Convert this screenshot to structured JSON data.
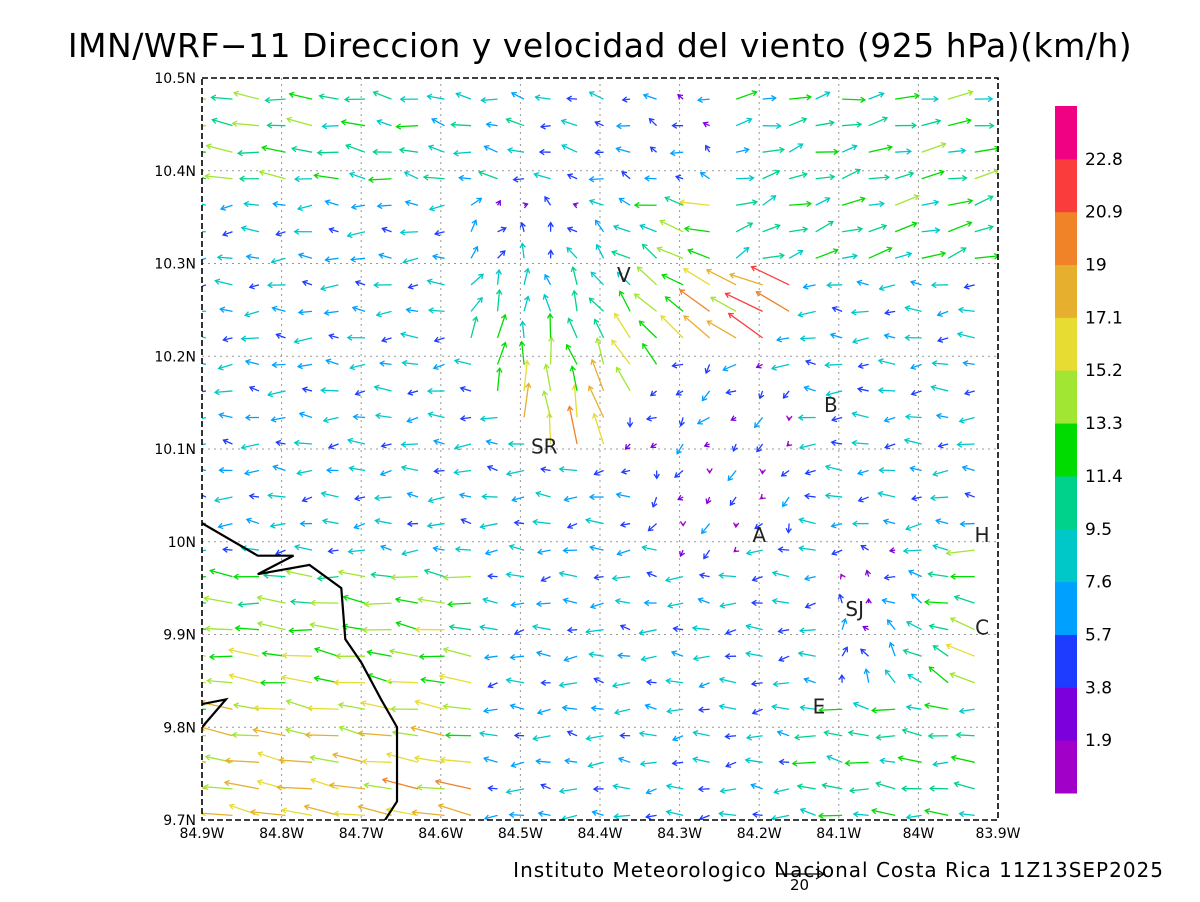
{
  "title": "IMN/WRF−11 Direccion y velocidad del viento (925 hPa)(km/h)",
  "footer": "Instituto Meteorologico Nacional Costa Rica 11Z13SEP2025",
  "reference_vector_label": "20",
  "map": {
    "lon_range": [
      -84.9,
      -83.9
    ],
    "lat_range": [
      9.7,
      10.5
    ],
    "x_ticks": [
      "84.9W",
      "84.8W",
      "84.7W",
      "84.6W",
      "84.5W",
      "84.4W",
      "84.3W",
      "84.2W",
      "84.1W",
      "84W",
      "83.9W"
    ],
    "y_ticks": [
      "9.7N",
      "9.8N",
      "9.9N",
      "10N",
      "10.1N",
      "10.2N",
      "10.3N",
      "10.4N",
      "10.5N"
    ],
    "grid": "dotted",
    "city_labels": [
      {
        "text": "V",
        "lon": -84.37,
        "lat": 10.28
      },
      {
        "text": "B",
        "lon": -84.11,
        "lat": 10.14
      },
      {
        "text": "SR",
        "lon": -84.47,
        "lat": 10.095
      },
      {
        "text": "A",
        "lon": -84.2,
        "lat": 10.0
      },
      {
        "text": "H",
        "lon": -83.92,
        "lat": 10.0
      },
      {
        "text": "SJ",
        "lon": -84.08,
        "lat": 9.92
      },
      {
        "text": "C",
        "lon": -83.92,
        "lat": 9.9
      },
      {
        "text": "E",
        "lon": -84.125,
        "lat": 9.815
      }
    ],
    "coastline": [
      [
        -84.9,
        10.02
      ],
      [
        -84.83,
        9.985
      ],
      [
        -84.785,
        9.985
      ],
      [
        -84.83,
        9.965
      ],
      [
        -84.765,
        9.975
      ],
      [
        -84.725,
        9.95
      ],
      [
        -84.72,
        9.895
      ],
      [
        -84.7,
        9.87
      ],
      [
        -84.675,
        9.83
      ],
      [
        -84.655,
        9.8
      ],
      [
        -84.655,
        9.72
      ],
      [
        -84.67,
        9.7
      ]
    ],
    "coast_islet": [
      [
        -84.9,
        9.8
      ],
      [
        -84.87,
        9.83
      ],
      [
        -84.9,
        9.825
      ]
    ]
  },
  "colorbar": {
    "labels": [
      "1.9",
      "3.8",
      "5.7",
      "7.6",
      "9.5",
      "11.4",
      "13.3",
      "15.2",
      "17.1",
      "19",
      "20.9",
      "22.8"
    ],
    "colors": [
      "#a000c8",
      "#7b00dc",
      "#1e3cff",
      "#00a0ff",
      "#00c8c8",
      "#00d28c",
      "#00dc00",
      "#a0e632",
      "#e6dc32",
      "#e6af2d",
      "#f08228",
      "#fa3c3c",
      "#f00082"
    ]
  }
}
